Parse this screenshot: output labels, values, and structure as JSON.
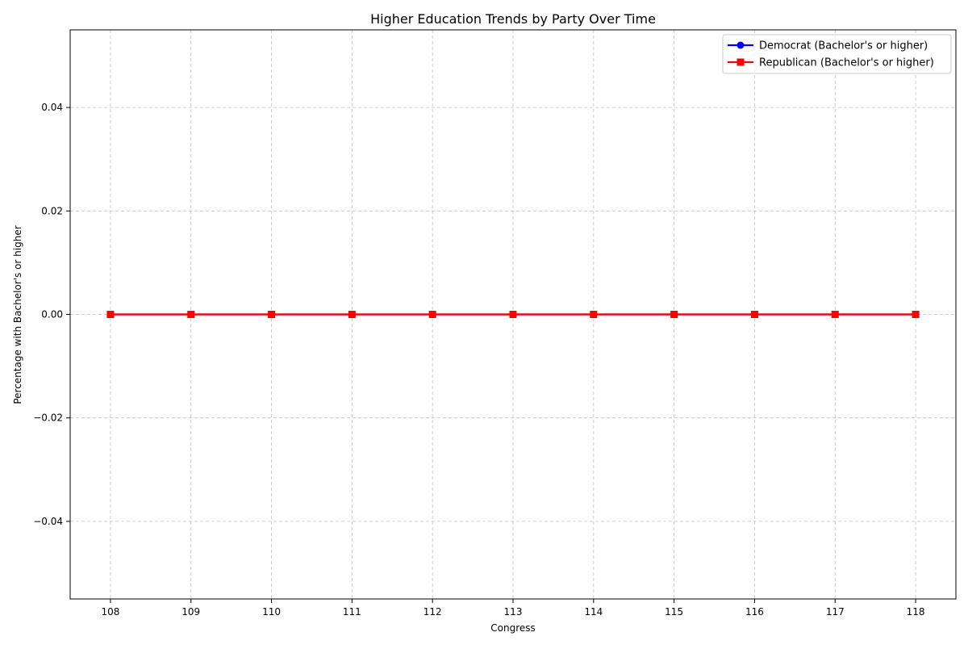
{
  "chart_data": {
    "type": "line",
    "title": "Higher Education Trends by Party Over Time",
    "xlabel": "Congress",
    "ylabel": "Percentage with Bachelor's or higher",
    "x": [
      108,
      109,
      110,
      111,
      112,
      113,
      114,
      115,
      116,
      117,
      118
    ],
    "xlim": [
      107.5,
      118.5
    ],
    "ylim": [
      -0.055,
      0.055
    ],
    "yticks": [
      -0.04,
      -0.02,
      0.0,
      0.02,
      0.04
    ],
    "ytick_labels": [
      "−0.04",
      "−0.02",
      "0.00",
      "0.02",
      "0.04"
    ],
    "grid": true,
    "legend": "top-right",
    "series": [
      {
        "name": "Democrat (Bachelor's or higher)",
        "color": "#0000ff",
        "marker": "circle",
        "values": [
          0,
          0,
          0,
          0,
          0,
          0,
          0,
          0,
          0,
          0,
          0
        ]
      },
      {
        "name": "Republican (Bachelor's or higher)",
        "color": "#ff0000",
        "marker": "square",
        "values": [
          0,
          0,
          0,
          0,
          0,
          0,
          0,
          0,
          0,
          0,
          0
        ]
      }
    ]
  }
}
